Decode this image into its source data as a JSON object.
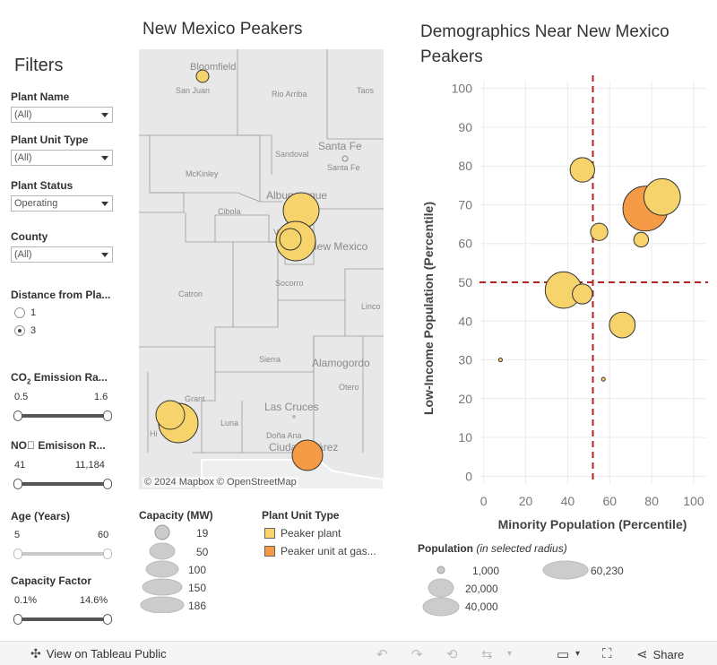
{
  "filters": {
    "title": "Filters",
    "plant_name": {
      "label": "Plant Name",
      "value": "(All)"
    },
    "plant_unit_type": {
      "label": "Plant Unit Type",
      "value": "(All)"
    },
    "plant_status": {
      "label": "Plant Status",
      "value": "Operating"
    },
    "county": {
      "label": "County",
      "value": "(All)"
    },
    "distance": {
      "label": "Distance from Pla...",
      "options": [
        "1",
        "3"
      ],
      "selected": "3"
    },
    "co2": {
      "label_pre": "CO",
      "label_sub": "2",
      "label_post": " Emission Ra...",
      "min": "0.5",
      "max": "1.6"
    },
    "nox": {
      "label": "NO\u0000 Emisison R...",
      "min": "41",
      "max": "11,184"
    },
    "age": {
      "label": "Age (Years)",
      "min": "5",
      "max": "60"
    },
    "capacity_factor": {
      "label": "Capacity Factor",
      "min": "0.1%",
      "max": "14.6%"
    }
  },
  "map": {
    "title": "New Mexico Peakers",
    "attribution": "© 2024 Mapbox  © OpenStreetMap",
    "labels": {
      "bloomfield": "Bloomfield",
      "san_juan": "San Juan",
      "rio_arriba": "Rio Arriba",
      "taos": "Taos",
      "santa_fe_big": "Santa Fe",
      "sandoval": "Sandoval",
      "santa_fe_small": "Santa Fe",
      "mckinley": "McKinley",
      "albuquerque": "Albuquerque",
      "cibola": "Cibola",
      "valencia": "V",
      "new_mexico": "New Mexico",
      "catron": "Catron",
      "socorro": "Socorro",
      "lincoln": "Linco",
      "sierra": "Sierra",
      "alamogordo": "Alamogordo",
      "otero": "Otero",
      "grant": "Grant",
      "luna": "Luna",
      "hidalgo": "Hi",
      "las_cruces": "Las Cruces",
      "dona_ana": "Doña Ana",
      "ciudad_juarez": "Ciudad Juárez"
    }
  },
  "capacity_legend": {
    "title": "Capacity (MW)",
    "items": [
      "19",
      "50",
      "100",
      "150",
      "186"
    ]
  },
  "unit_type_legend": {
    "title": "Plant Unit Type",
    "items": [
      {
        "label": "Peaker plant",
        "color": "#f6d36b"
      },
      {
        "label": "Peaker unit at gas...",
        "color": "#f59a45"
      }
    ]
  },
  "scatter_title": "Demographics Near New Mexico Peakers",
  "chart_data": {
    "type": "scatter",
    "title": "Demographics Near New Mexico Peakers",
    "xlabel": "Minority Population (Percentile)",
    "ylabel": "Low-Income Population (Percentile)",
    "xlim": [
      -2,
      106
    ],
    "ylim": [
      -2,
      102
    ],
    "xticks": [
      "0",
      "20",
      "40",
      "60",
      "80",
      "100"
    ],
    "yticks": [
      "0",
      "10",
      "20",
      "30",
      "40",
      "50",
      "60",
      "70",
      "80",
      "90",
      "100"
    ],
    "reference_lines": {
      "x": 52,
      "y": 50
    },
    "grid": true,
    "points": [
      {
        "x": 47,
        "y": 79,
        "population": 18000,
        "type": "Peaker plant"
      },
      {
        "x": 85,
        "y": 72,
        "population": 40000,
        "type": "Peaker plant"
      },
      {
        "x": 77,
        "y": 69,
        "population": 60230,
        "type": "Peaker unit at gas..."
      },
      {
        "x": 55,
        "y": 63,
        "population": 9000,
        "type": "Peaker plant"
      },
      {
        "x": 75,
        "y": 61,
        "population": 6500,
        "type": "Peaker plant"
      },
      {
        "x": 38,
        "y": 48,
        "population": 40000,
        "type": "Peaker plant"
      },
      {
        "x": 47,
        "y": 47,
        "population": 12000,
        "type": "Peaker plant"
      },
      {
        "x": 66,
        "y": 39,
        "population": 20000,
        "type": "Peaker plant"
      },
      {
        "x": 8,
        "y": 30,
        "population": 400,
        "type": "Peaker plant"
      },
      {
        "x": 57,
        "y": 25,
        "population": 400,
        "type": "Peaker plant"
      }
    ]
  },
  "population_legend": {
    "title": "Population",
    "subtitle": "(in selected radius)",
    "items": [
      "1,000",
      "20,000",
      "40,000",
      "60,230"
    ]
  },
  "toolbar": {
    "view_on": "View on Tableau Public",
    "share": "Share"
  },
  "colors": {
    "peaker_plant": "#f6d36b",
    "peaker_unit_gas": "#f59a45",
    "reference_line": "#b22222"
  }
}
